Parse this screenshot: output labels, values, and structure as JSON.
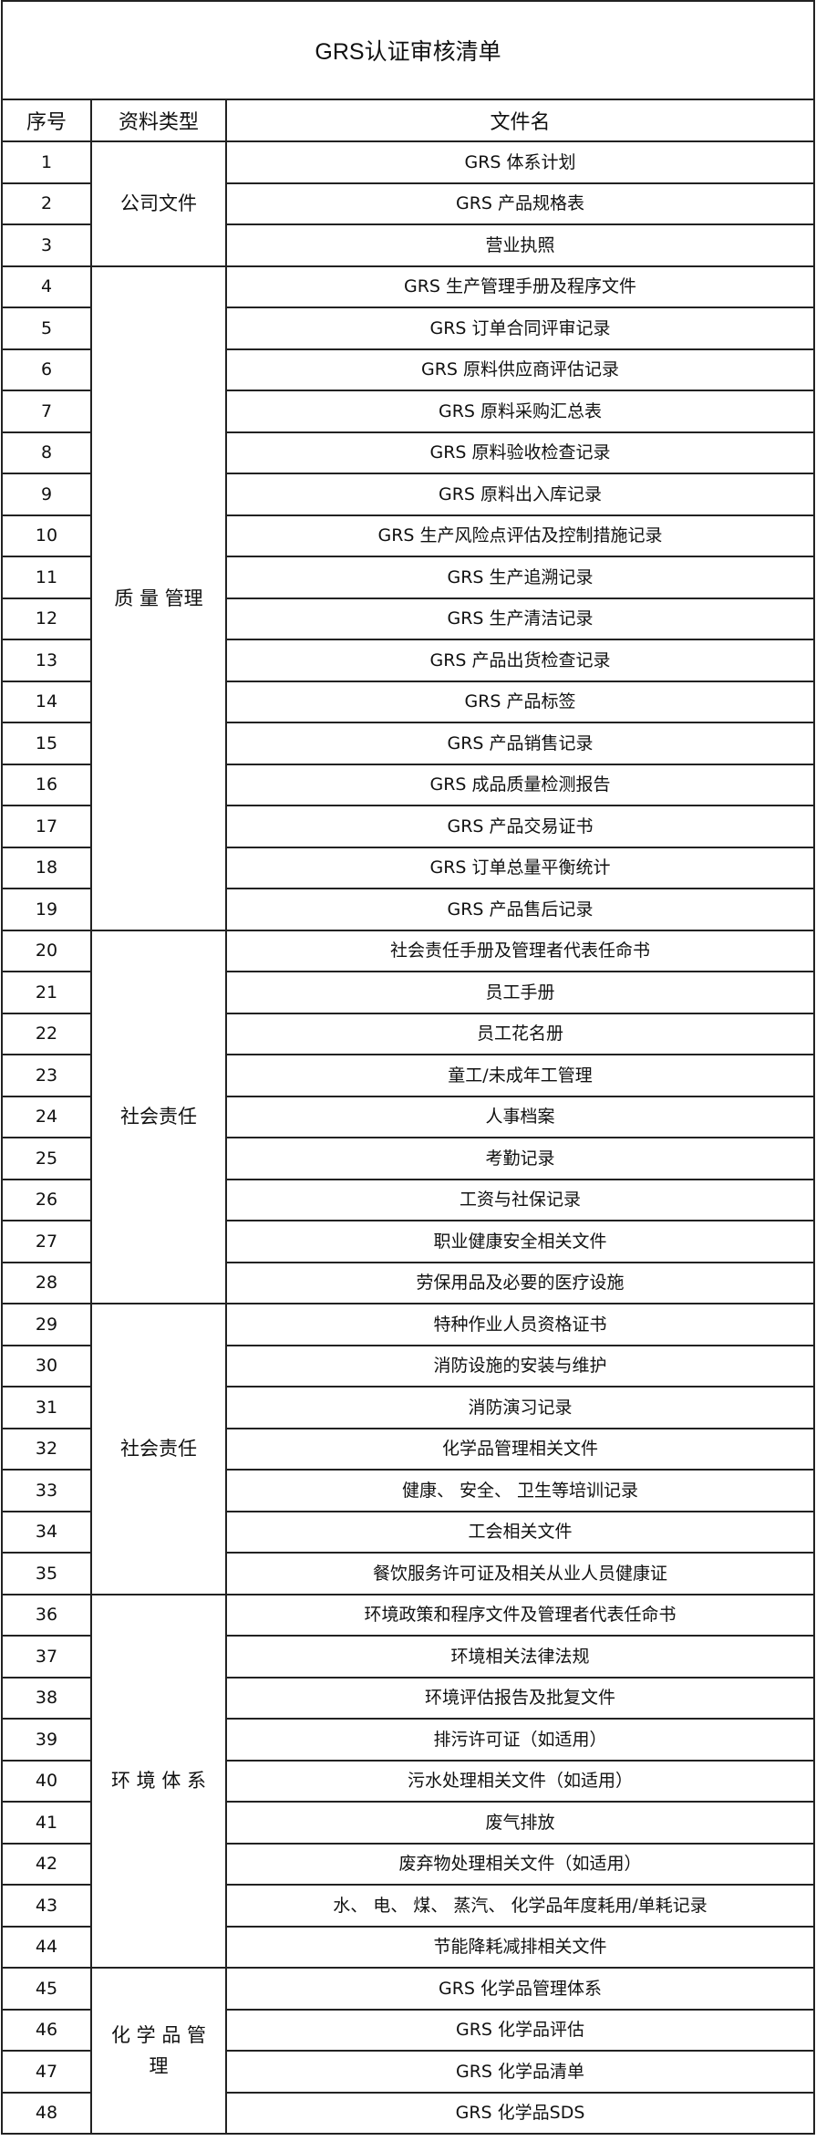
{
  "title": "GRS认证审核清单",
  "headers": {
    "no": "序号",
    "category": "资料类型",
    "filename": "文件名"
  },
  "groups": [
    {
      "label": "公司文件",
      "span": 3
    },
    {
      "label": "质 量 管理",
      "span": 16
    },
    {
      "label": "社会责任",
      "span": 9
    },
    {
      "label": "社会责任",
      "span": 7
    },
    {
      "label": "环 境 体 系",
      "span": 9
    },
    {
      "label": "化 学 品 管 理",
      "span": 4
    }
  ],
  "rows": [
    {
      "no": "1",
      "name": "GRS 体系计划"
    },
    {
      "no": "2",
      "name": "GRS 产品规格表"
    },
    {
      "no": "3",
      "name": "营业执照"
    },
    {
      "no": "4",
      "name": "GRS 生产管理手册及程序文件"
    },
    {
      "no": "5",
      "name": "GRS 订单合同评审记录"
    },
    {
      "no": "6",
      "name": "GRS 原料供应商评估记录"
    },
    {
      "no": "7",
      "name": "GRS 原料采购汇总表"
    },
    {
      "no": "8",
      "name": "GRS 原料验收检查记录"
    },
    {
      "no": "9",
      "name": "GRS 原料出入库记录"
    },
    {
      "no": "10",
      "name": "GRS 生产风险点评估及控制措施记录"
    },
    {
      "no": "11",
      "name": "GRS 生产追溯记录"
    },
    {
      "no": "12",
      "name": "GRS 生产清洁记录"
    },
    {
      "no": "13",
      "name": "GRS 产品出货检查记录"
    },
    {
      "no": "14",
      "name": "GRS 产品标签"
    },
    {
      "no": "15",
      "name": "GRS 产品销售记录"
    },
    {
      "no": "16",
      "name": "GRS 成品质量检测报告"
    },
    {
      "no": "17",
      "name": "GRS 产品交易证书"
    },
    {
      "no": "18",
      "name": "GRS 订单总量平衡统计"
    },
    {
      "no": "19",
      "name": "GRS 产品售后记录"
    },
    {
      "no": "20",
      "name": "社会责任手册及管理者代表任命书"
    },
    {
      "no": "21",
      "name": "员工手册"
    },
    {
      "no": "22",
      "name": "员工花名册"
    },
    {
      "no": "23",
      "name": "童工/未成年工管理"
    },
    {
      "no": "24",
      "name": "人事档案"
    },
    {
      "no": "25",
      "name": "考勤记录"
    },
    {
      "no": "26",
      "name": "工资与社保记录"
    },
    {
      "no": "27",
      "name": "职业健康安全相关文件"
    },
    {
      "no": "28",
      "name": "劳保用品及必要的医疗设施"
    },
    {
      "no": "29",
      "name": "特种作业人员资格证书"
    },
    {
      "no": "30",
      "name": "消防设施的安装与维护"
    },
    {
      "no": "31",
      "name": "消防演习记录"
    },
    {
      "no": "32",
      "name": "化学品管理相关文件"
    },
    {
      "no": "33",
      "name": "健康、 安全、 卫生等培训记录"
    },
    {
      "no": "34",
      "name": "工会相关文件"
    },
    {
      "no": "35",
      "name": "餐饮服务许可证及相关从业人员健康证"
    },
    {
      "no": "36",
      "name": "环境政策和程序文件及管理者代表任命书"
    },
    {
      "no": "37",
      "name": "环境相关法律法规"
    },
    {
      "no": "38",
      "name": "环境评估报告及批复文件"
    },
    {
      "no": "39",
      "name": "排污许可证（如适用）"
    },
    {
      "no": "40",
      "name": "污水处理相关文件（如适用）"
    },
    {
      "no": "41",
      "name": "废气排放"
    },
    {
      "no": "42",
      "name": "废弃物处理相关文件（如适用）"
    },
    {
      "no": "43",
      "name": "水、 电、 煤、 蒸汽、 化学品年度耗用/单耗记录"
    },
    {
      "no": "44",
      "name": "节能降耗减排相关文件"
    },
    {
      "no": "45",
      "name": "GRS 化学品管理体系"
    },
    {
      "no": "46",
      "name": "GRS 化学品评估"
    },
    {
      "no": "47",
      "name": "GRS 化学品清单"
    },
    {
      "no": "48",
      "name": "GRS 化学品SDS"
    }
  ]
}
